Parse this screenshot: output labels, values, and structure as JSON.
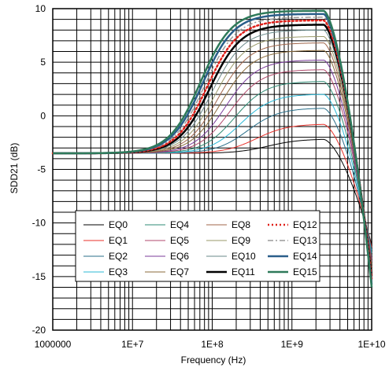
{
  "chart_data": {
    "type": "line",
    "title": "",
    "xlabel": "Frequency (Hz)",
    "ylabel": "SDD21 (dB)",
    "x_scale": "log",
    "xlim": [
      1000000,
      10000000000
    ],
    "ylim": [
      -20,
      10
    ],
    "x_ticks": [
      {
        "value": 1000000,
        "label": "1000000"
      },
      {
        "value": 10000000,
        "label": "1E+7"
      },
      {
        "value": 100000000,
        "label": "1E+8"
      },
      {
        "value": 1000000000,
        "label": "1E+9"
      },
      {
        "value": 10000000000,
        "label": "1E+10"
      }
    ],
    "y_ticks": [
      {
        "value": 10,
        "label": "10"
      },
      {
        "value": 5,
        "label": "5"
      },
      {
        "value": 0,
        "label": "0"
      },
      {
        "value": -5,
        "label": "-5"
      },
      {
        "value": -10,
        "label": "-10"
      },
      {
        "value": -15,
        "label": "-15"
      },
      {
        "value": -20,
        "label": "-20"
      }
    ],
    "grid": true,
    "legend_position": "bottom-center",
    "series": [
      {
        "name": "EQ0",
        "color": "#000000",
        "style": "solid",
        "width": 1,
        "dc": -3.5,
        "peak": -2.2
      },
      {
        "name": "EQ1",
        "color": "#e8302a",
        "style": "solid",
        "width": 1,
        "dc": -3.5,
        "peak": -0.8
      },
      {
        "name": "EQ2",
        "color": "#2a6f8a",
        "style": "solid",
        "width": 1,
        "dc": -3.5,
        "peak": 0.7
      },
      {
        "name": "EQ3",
        "color": "#2bb8d6",
        "style": "solid",
        "width": 1,
        "dc": -3.5,
        "peak": 2.0
      },
      {
        "name": "EQ4",
        "color": "#2e8b74",
        "style": "solid",
        "width": 1,
        "dc": -3.5,
        "peak": 3.2
      },
      {
        "name": "EQ5",
        "color": "#b04a6c",
        "style": "solid",
        "width": 1,
        "dc": -3.5,
        "peak": 4.3
      },
      {
        "name": "EQ6",
        "color": "#7b3b9a",
        "style": "solid",
        "width": 1,
        "dc": -3.5,
        "peak": 5.2
      },
      {
        "name": "EQ7",
        "color": "#8a6a3a",
        "style": "solid",
        "width": 1,
        "dc": -3.5,
        "peak": 6.1
      },
      {
        "name": "EQ8",
        "color": "#a0664a",
        "style": "solid",
        "width": 1,
        "dc": -3.5,
        "peak": 6.8
      },
      {
        "name": "EQ9",
        "color": "#9a9a6a",
        "style": "solid",
        "width": 1,
        "dc": -3.5,
        "peak": 7.4
      },
      {
        "name": "EQ10",
        "color": "#6a8a8a",
        "style": "solid",
        "width": 1,
        "dc": -3.5,
        "peak": 8.0
      },
      {
        "name": "EQ11",
        "color": "#000000",
        "style": "solid",
        "width": 2.5,
        "dc": -3.5,
        "peak": 8.5
      },
      {
        "name": "EQ12",
        "color": "#e0201a",
        "style": "dotted",
        "width": 2.5,
        "dc": -3.5,
        "peak": 8.9
      },
      {
        "name": "EQ13",
        "color": "#9a9a9a",
        "style": "dashdot",
        "width": 1.5,
        "dc": -3.5,
        "peak": 9.2
      },
      {
        "name": "EQ14",
        "color": "#2a5f8a",
        "style": "solid",
        "width": 2.5,
        "dc": -3.5,
        "peak": 9.5
      },
      {
        "name": "EQ15",
        "color": "#2e7a5a",
        "style": "solid",
        "width": 2.5,
        "dc": -3.5,
        "peak": 9.8
      }
    ]
  }
}
